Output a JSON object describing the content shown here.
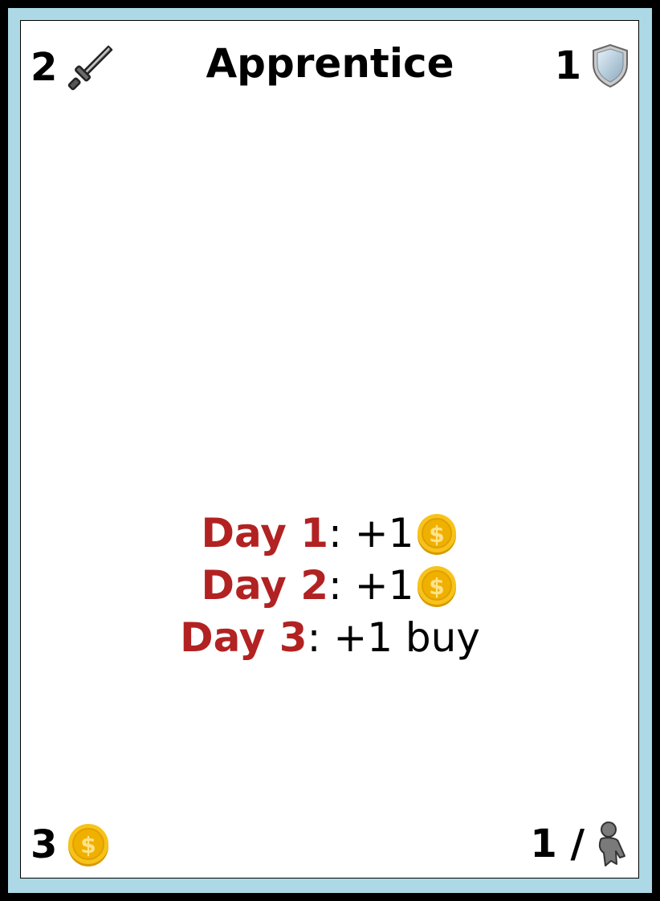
{
  "card": {
    "title": "Apprentice",
    "attack": "2",
    "defense": "1",
    "cost": "3",
    "limit": "1 /",
    "icons": {
      "attack": "sword-icon",
      "defense": "shield-icon",
      "cost": "coin-icon",
      "limit": "person-icon"
    },
    "colors": {
      "border": "#add8e6",
      "day_label": "#b22222",
      "coin": "#f5b800"
    },
    "effects": [
      {
        "day": "Day 1",
        "separator": ": ",
        "text": "+1",
        "icon": "coin-icon"
      },
      {
        "day": "Day 2",
        "separator": ": ",
        "text": "+1",
        "icon": "coin-icon"
      },
      {
        "day": "Day 3",
        "separator": ": ",
        "text": "+1 buy"
      }
    ]
  }
}
